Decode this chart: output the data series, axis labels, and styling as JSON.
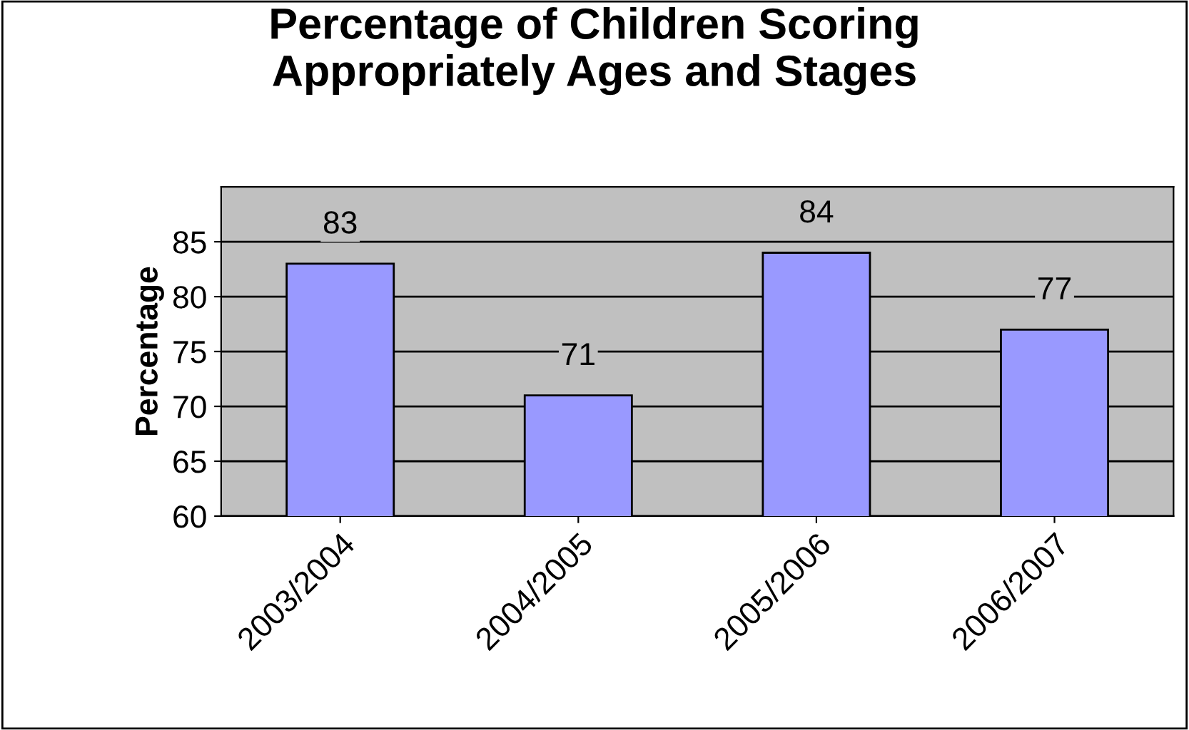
{
  "chart_data": {
    "type": "bar",
    "title": "Percentage of Children Scoring\nAppropriately Ages and Stages",
    "ylabel": "Percentage",
    "categories": [
      "2003/2004",
      "2004/2005",
      "2005/2006",
      "2006/2007"
    ],
    "values": [
      83,
      71,
      84,
      77
    ],
    "color": "#9999ff",
    "data_labels": true,
    "ylim": [
      60,
      90
    ],
    "yticks": [
      60,
      65,
      70,
      75,
      80,
      85
    ],
    "grid": "y",
    "legend": false
  }
}
